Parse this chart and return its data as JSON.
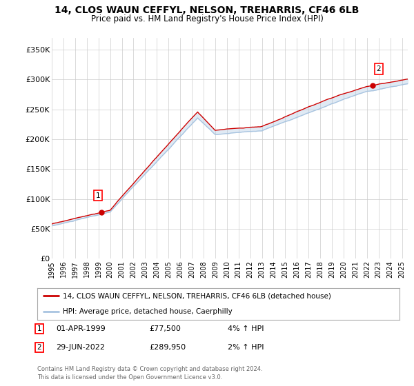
{
  "title": "14, CLOS WAUN CEFFYL, NELSON, TREHARRIS, CF46 6LB",
  "subtitle": "Price paid vs. HM Land Registry's House Price Index (HPI)",
  "ylabel_ticks": [
    "£0",
    "£50K",
    "£100K",
    "£150K",
    "£200K",
    "£250K",
    "£300K",
    "£350K"
  ],
  "ytick_values": [
    0,
    50000,
    100000,
    150000,
    200000,
    250000,
    300000,
    350000
  ],
  "ylim": [
    0,
    370000
  ],
  "xlim_start": 1995.0,
  "xlim_end": 2025.5,
  "legend_line1": "14, CLOS WAUN CEFFYL, NELSON, TREHARRIS, CF46 6LB (detached house)",
  "legend_line2": "HPI: Average price, detached house, Caerphilly",
  "sale1_date": "01-APR-1999",
  "sale1_price": "£77,500",
  "sale1_hpi": "4% ↑ HPI",
  "sale2_date": "29-JUN-2022",
  "sale2_price": "£289,950",
  "sale2_hpi": "2% ↑ HPI",
  "footnote": "Contains HM Land Registry data © Crown copyright and database right 2024.\nThis data is licensed under the Open Government Licence v3.0.",
  "sale1_year": 1999.25,
  "sale1_value": 77500,
  "sale2_year": 2022.5,
  "sale2_value": 289950,
  "hpi_color": "#a8c4e0",
  "price_color": "#cc0000",
  "marker_color": "#cc0000",
  "bg_color": "#ffffff",
  "grid_color": "#cccccc"
}
